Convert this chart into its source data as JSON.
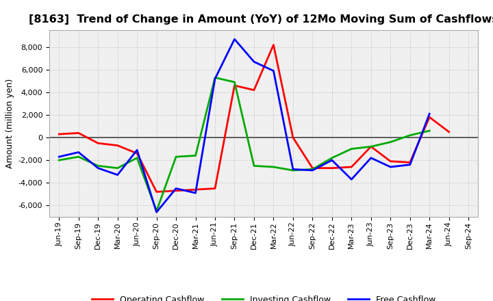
{
  "title": "[8163]  Trend of Change in Amount (YoY) of 12Mo Moving Sum of Cashflows",
  "ylabel": "Amount (million yen)",
  "x_labels": [
    "Jun-19",
    "Sep-19",
    "Dec-19",
    "Mar-20",
    "Jun-20",
    "Sep-20",
    "Dec-20",
    "Mar-21",
    "Jun-21",
    "Sep-21",
    "Dec-21",
    "Mar-22",
    "Jun-22",
    "Sep-22",
    "Dec-22",
    "Mar-23",
    "Jun-23",
    "Sep-23",
    "Dec-23",
    "Mar-24",
    "Jun-24",
    "Sep-24"
  ],
  "operating": [
    300,
    400,
    -500,
    -700,
    -1400,
    -4800,
    -4700,
    -4600,
    -4500,
    4600,
    4200,
    8200,
    0,
    -2700,
    -2700,
    -2600,
    -800,
    -2100,
    -2200,
    1800,
    500,
    null
  ],
  "investing": [
    -2000,
    -1700,
    -2500,
    -2700,
    -1800,
    -6500,
    -1700,
    -1600,
    5300,
    4900,
    -2500,
    -2600,
    -2900,
    -2800,
    -1800,
    -1000,
    -800,
    -400,
    200,
    600,
    null,
    null
  ],
  "free": [
    -1700,
    -1300,
    -2700,
    -3300,
    -1100,
    -6600,
    -4500,
    -4900,
    5200,
    8700,
    6700,
    5900,
    -2800,
    -2900,
    -2000,
    -3700,
    -1800,
    -2600,
    -2400,
    2100,
    null,
    null
  ],
  "operating_color": "#ff0000",
  "investing_color": "#00aa00",
  "free_color": "#0000ff",
  "ylim": [
    -7000,
    9500
  ],
  "yticks": [
    -6000,
    -4000,
    -2000,
    0,
    2000,
    4000,
    6000,
    8000
  ],
  "bg_color": "#ffffff",
  "plot_bg_color": "#f0f0f0",
  "grid_color": "#bbbbbb",
  "title_fontsize": 11.5,
  "label_fontsize": 9,
  "tick_fontsize": 8,
  "legend_fontsize": 9,
  "line_width": 2.0
}
